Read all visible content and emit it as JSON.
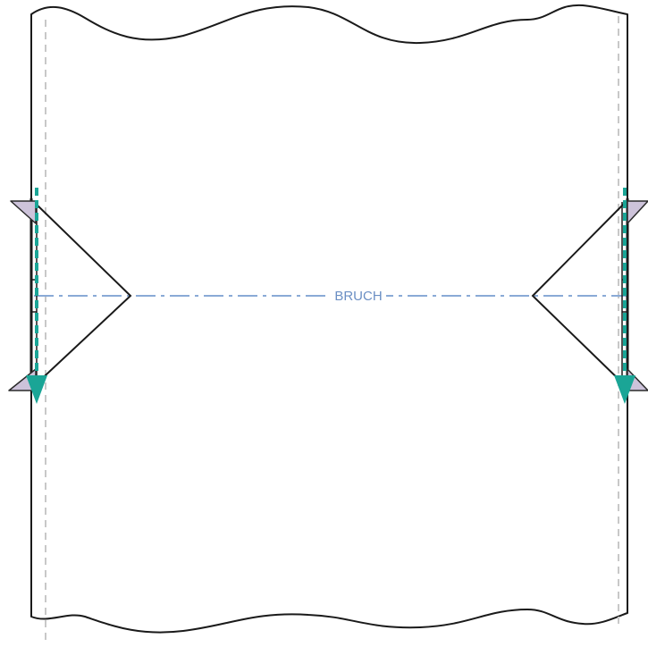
{
  "diagram": {
    "fold_label": "BRUCH"
  },
  "colors": {
    "outline": "#1a1a1a",
    "seam_allowance": "#c8c8c8",
    "fold_line": "#8aaad6",
    "fold_label": "#6b8fc4",
    "stitch_arrow": "#1aa596",
    "notch_fill": "#cdc3da",
    "notch_stroke": "#2a2a2a"
  },
  "icons": {
    "left_arrow": "arrow-down-icon",
    "right_arrow": "arrow-down-icon",
    "notch": "triangle-notch-icon"
  }
}
